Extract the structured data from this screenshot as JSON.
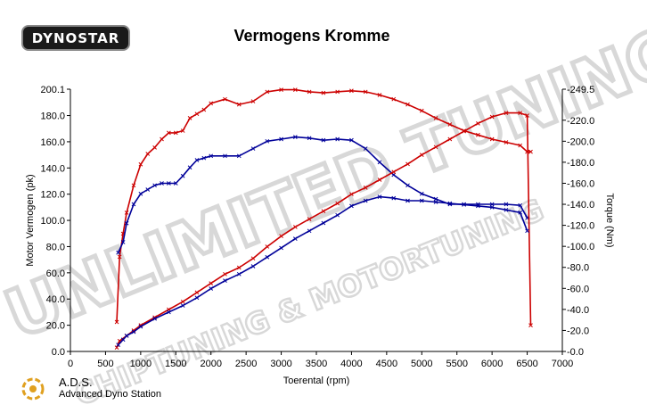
{
  "header": {
    "logo_text": "DYNOSTAR",
    "title": "Vermogens Kromme"
  },
  "footer": {
    "brand": "A.D.S.",
    "subtitle": "Advanced Dyno Station"
  },
  "watermark": {
    "line1": "UNLIMITED TUNING",
    "line2": "CHIPTUNING & MOTORTUNING",
    "color": "#d8d8d8"
  },
  "chart_data": {
    "type": "line",
    "title": "Vermogens Kromme",
    "xlabel": "Toerental (rpm)",
    "ylabel_left": "Motor Vermogen (pk)",
    "ylabel_right": "Torque (Nm)",
    "xlim": [
      0,
      7000
    ],
    "ylim_left": [
      0,
      200.1
    ],
    "ylim_right": [
      0,
      249.5
    ],
    "x_ticks": [
      "0",
      "500",
      "1000",
      "1500",
      "2000",
      "2500",
      "3000",
      "3500",
      "4000",
      "4500",
      "5000",
      "5500",
      "6000",
      "6500",
      "7000"
    ],
    "y_left_ticks": [
      "0.0",
      "20.0",
      "40.0",
      "60.0",
      "80.0",
      "100.0",
      "120.0",
      "140.0",
      "160.0",
      "180.0",
      "200.1"
    ],
    "y_right_ticks": [
      "0.0",
      "20.0",
      "40.0",
      "60.0",
      "80.0",
      "100.0",
      "120.0",
      "140.0",
      "160.0",
      "180.0",
      "200.0",
      "220.0",
      "249.5"
    ],
    "grid": false,
    "series": [
      {
        "axis": "right",
        "color": "#cc0000",
        "x": [
          660,
          700,
          750,
          800,
          900,
          1000,
          1100,
          1200,
          1300,
          1400,
          1500,
          1600,
          1700,
          1800,
          1900,
          2000,
          2200,
          2400,
          2600,
          2800,
          3000,
          3200,
          3400,
          3600,
          3800,
          4000,
          4200,
          4400,
          4600,
          4800,
          5000,
          5200,
          5400,
          5600,
          5800,
          6000,
          6200,
          6400,
          6500,
          6550
        ],
        "values": [
          28,
          90,
          112,
          132,
          158,
          178,
          188,
          194,
          202,
          208,
          208,
          210,
          222,
          226,
          230,
          236,
          240,
          235,
          238,
          247,
          249,
          249,
          247,
          246,
          247,
          248,
          247,
          244,
          240,
          235,
          229,
          222,
          216,
          210,
          206,
          202,
          199,
          196,
          190,
          190
        ]
      },
      {
        "axis": "right",
        "color": "#000099",
        "x": [
          680,
          750,
          800,
          900,
          1000,
          1100,
          1200,
          1300,
          1400,
          1500,
          1600,
          1700,
          1800,
          1900,
          2000,
          2200,
          2400,
          2600,
          2800,
          3000,
          3200,
          3400,
          3600,
          3800,
          4000,
          4200,
          4400,
          4600,
          4800,
          5000,
          5200,
          5400,
          5600,
          5800,
          6000,
          6200,
          6400,
          6500
        ],
        "values": [
          94,
          104,
          122,
          140,
          150,
          154,
          158,
          160,
          160,
          160,
          167,
          175,
          182,
          184,
          186,
          186,
          186,
          193,
          200,
          202,
          204,
          203,
          201,
          202,
          201,
          193,
          180,
          168,
          158,
          150,
          145,
          140,
          140,
          140,
          140,
          140,
          139,
          127
        ]
      },
      {
        "axis": "left",
        "color": "#cc0000",
        "x": [
          660,
          700,
          800,
          900,
          1000,
          1200,
          1400,
          1600,
          1800,
          2000,
          2200,
          2400,
          2600,
          2800,
          3000,
          3200,
          3400,
          3600,
          3800,
          4000,
          4200,
          4400,
          4600,
          4800,
          5000,
          5200,
          5400,
          5600,
          5800,
          6000,
          6200,
          6400,
          6500,
          6550
        ],
        "values": [
          3,
          8,
          12,
          16,
          20,
          26,
          32,
          38,
          45,
          52,
          59,
          64,
          71,
          80,
          88,
          95,
          101,
          107,
          113,
          120,
          125,
          131,
          137,
          143,
          150,
          156,
          162,
          168,
          174,
          179,
          182,
          182,
          180,
          20
        ]
      },
      {
        "axis": "left",
        "color": "#000099",
        "x": [
          680,
          750,
          800,
          900,
          1000,
          1200,
          1400,
          1600,
          1800,
          2000,
          2200,
          2400,
          2600,
          2800,
          3000,
          3200,
          3400,
          3600,
          3800,
          4000,
          4200,
          4400,
          4600,
          4800,
          5000,
          5200,
          5400,
          5600,
          5800,
          6000,
          6200,
          6400,
          6500
        ],
        "values": [
          5,
          9,
          12,
          15,
          19,
          25,
          30,
          35,
          41,
          48,
          54,
          59,
          65,
          72,
          79,
          86,
          92,
          98,
          104,
          111,
          115,
          118,
          117,
          115,
          115,
          114,
          113,
          112,
          111,
          110,
          108,
          106,
          92
        ]
      }
    ]
  }
}
